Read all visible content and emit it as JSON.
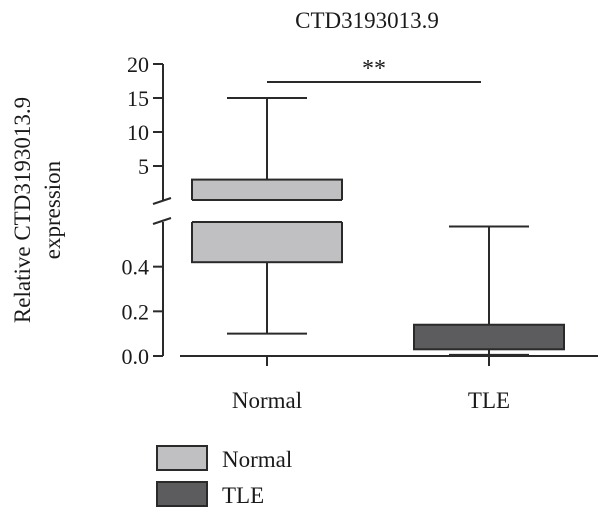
{
  "chart_data": {
    "type": "boxplot",
    "title": "CTD3193013.9",
    "ylabel_line1": "Relative CTD3193013.9",
    "ylabel_line2": "expression",
    "categories": [
      "Normal",
      "TLE"
    ],
    "axis_break": {
      "lower_range": [
        0,
        0.6
      ],
      "upper_range": [
        0,
        20
      ],
      "lower_ticks": [
        "0.0",
        "0.2",
        "0.4"
      ],
      "upper_ticks": [
        "5",
        "10",
        "15",
        "20"
      ]
    },
    "boxes": [
      {
        "name": "Normal",
        "min": 0.1,
        "q1": 0.42,
        "q3": 3.0,
        "max": 15,
        "color": "#c0c0c2"
      },
      {
        "name": "TLE",
        "min": 0.005,
        "q1": 0.03,
        "q3": 0.14,
        "max": 0.58,
        "color": "#5c5c5e"
      }
    ],
    "significance": {
      "label": "**",
      "between": [
        "Normal",
        "TLE"
      ],
      "at_y": 20
    },
    "legend": {
      "placement": "bottom-left",
      "entries": [
        {
          "label": "Normal",
          "color": "#c0c0c2"
        },
        {
          "label": "TLE",
          "color": "#5c5c5e"
        }
      ]
    }
  }
}
